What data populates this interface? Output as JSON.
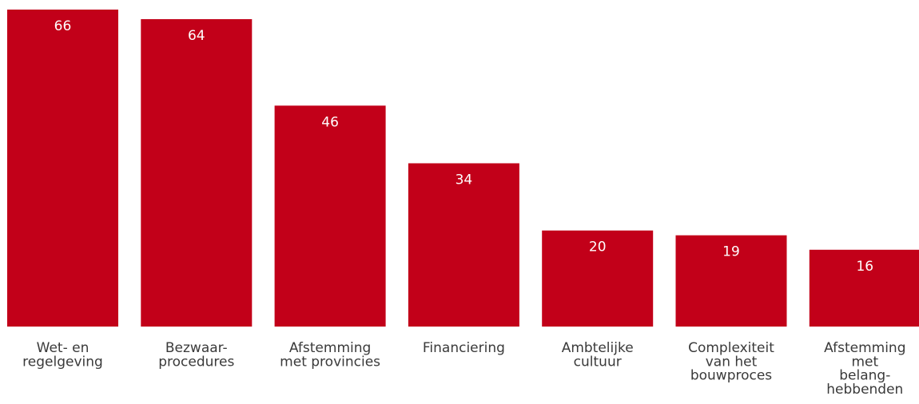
{
  "chart_data": {
    "type": "bar",
    "categories": [
      [
        "Wet- en",
        "regelgeving"
      ],
      [
        "Bezwaar-",
        "procedures"
      ],
      [
        "Afstemming",
        "met provincies"
      ],
      [
        "Financiering"
      ],
      [
        "Ambtelijke",
        "cultuur"
      ],
      [
        "Complexiteit",
        "van het",
        "bouwproces"
      ],
      [
        "Afstemming",
        "met",
        "belang-",
        "hebbenden"
      ]
    ],
    "values": [
      66,
      64,
      46,
      34,
      20,
      19,
      16
    ],
    "ylim": [
      0,
      66
    ],
    "data_labels": true,
    "grid": false,
    "legend": false,
    "colors": {
      "bar": "#c20019",
      "value_text": "#ffffff",
      "category_text": "#3a3a3a"
    }
  }
}
